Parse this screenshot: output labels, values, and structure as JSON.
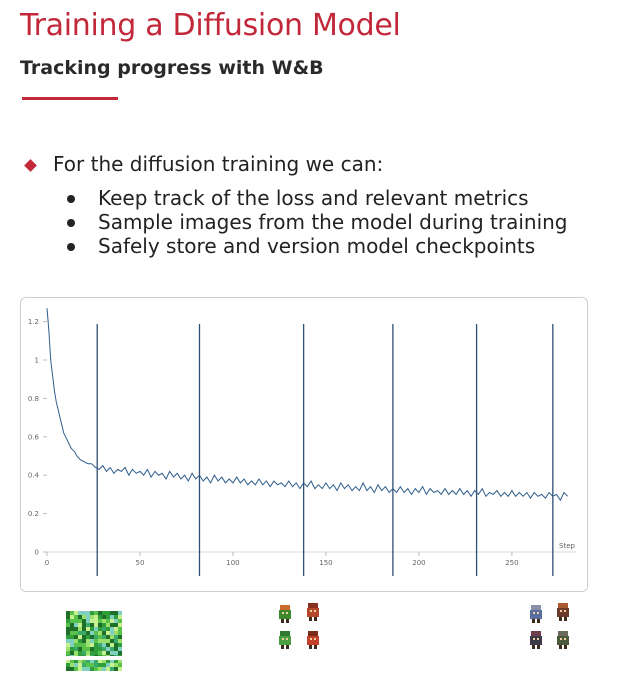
{
  "slide": {
    "title": "Training a Diffusion Model",
    "subtitle": "Tracking progress with W&B",
    "accent_color": "#c2283a",
    "main_bullet": "For the diffusion training we can:",
    "bullet_icon": "diamond-icon",
    "sub_bullets": [
      "Keep track of the loss and relevant metrics",
      "Sample images from the model during training",
      "Safely store and version model checkpoints"
    ]
  },
  "chart_data": {
    "type": "line",
    "title": "",
    "xlabel": "Step",
    "ylabel": "",
    "xlim": [
      0,
      285
    ],
    "ylim": [
      0,
      1.25
    ],
    "x_ticks": [
      0,
      50,
      100,
      150,
      200,
      250
    ],
    "y_ticks": [
      0,
      0.2,
      0.4,
      0.6,
      0.8,
      1,
      1.2
    ],
    "y_tick_labels": [
      "0",
      "0.2",
      "0.4",
      "0.6",
      "0.8",
      "1",
      "1.2"
    ],
    "grid": false,
    "line_color": "#2f5d8c",
    "vertical_markers": [
      27,
      82,
      138,
      186,
      231,
      272
    ],
    "series": [
      {
        "points": [
          [
            0,
            1.27
          ],
          [
            1,
            1.15
          ],
          [
            2,
            1.0
          ],
          [
            3,
            0.92
          ],
          [
            4,
            0.84
          ],
          [
            5,
            0.78
          ],
          [
            6,
            0.74
          ],
          [
            7,
            0.7
          ],
          [
            8,
            0.66
          ],
          [
            9,
            0.62
          ],
          [
            10,
            0.6
          ],
          [
            11,
            0.58
          ],
          [
            12,
            0.56
          ],
          [
            13,
            0.54
          ],
          [
            14,
            0.53
          ],
          [
            15,
            0.52
          ],
          [
            16,
            0.5
          ],
          [
            17,
            0.49
          ],
          [
            18,
            0.48
          ],
          [
            20,
            0.47
          ],
          [
            22,
            0.46
          ],
          [
            24,
            0.46
          ],
          [
            26,
            0.44
          ],
          [
            28,
            0.43
          ],
          [
            30,
            0.45
          ],
          [
            32,
            0.42
          ],
          [
            34,
            0.44
          ],
          [
            36,
            0.41
          ],
          [
            38,
            0.43
          ],
          [
            40,
            0.42
          ],
          [
            42,
            0.44
          ],
          [
            44,
            0.4
          ],
          [
            46,
            0.43
          ],
          [
            48,
            0.41
          ],
          [
            50,
            0.42
          ],
          [
            52,
            0.4
          ],
          [
            54,
            0.43
          ],
          [
            56,
            0.39
          ],
          [
            58,
            0.42
          ],
          [
            60,
            0.4
          ],
          [
            62,
            0.41
          ],
          [
            64,
            0.38
          ],
          [
            66,
            0.42
          ],
          [
            68,
            0.39
          ],
          [
            70,
            0.41
          ],
          [
            72,
            0.38
          ],
          [
            74,
            0.4
          ],
          [
            76,
            0.37
          ],
          [
            78,
            0.41
          ],
          [
            80,
            0.38
          ],
          [
            82,
            0.4
          ],
          [
            84,
            0.37
          ],
          [
            86,
            0.39
          ],
          [
            88,
            0.36
          ],
          [
            90,
            0.4
          ],
          [
            92,
            0.37
          ],
          [
            94,
            0.39
          ],
          [
            96,
            0.36
          ],
          [
            98,
            0.38
          ],
          [
            100,
            0.36
          ],
          [
            102,
            0.39
          ],
          [
            104,
            0.36
          ],
          [
            106,
            0.38
          ],
          [
            108,
            0.35
          ],
          [
            110,
            0.37
          ],
          [
            112,
            0.35
          ],
          [
            114,
            0.38
          ],
          [
            116,
            0.35
          ],
          [
            118,
            0.37
          ],
          [
            120,
            0.34
          ],
          [
            122,
            0.37
          ],
          [
            124,
            0.35
          ],
          [
            126,
            0.36
          ],
          [
            128,
            0.34
          ],
          [
            130,
            0.37
          ],
          [
            132,
            0.34
          ],
          [
            134,
            0.36
          ],
          [
            136,
            0.33
          ],
          [
            138,
            0.36
          ],
          [
            140,
            0.34
          ],
          [
            142,
            0.37
          ],
          [
            144,
            0.33
          ],
          [
            146,
            0.35
          ],
          [
            148,
            0.33
          ],
          [
            150,
            0.36
          ],
          [
            152,
            0.33
          ],
          [
            154,
            0.35
          ],
          [
            156,
            0.32
          ],
          [
            158,
            0.36
          ],
          [
            160,
            0.33
          ],
          [
            162,
            0.35
          ],
          [
            164,
            0.32
          ],
          [
            166,
            0.34
          ],
          [
            168,
            0.32
          ],
          [
            170,
            0.36
          ],
          [
            172,
            0.32
          ],
          [
            174,
            0.34
          ],
          [
            176,
            0.31
          ],
          [
            178,
            0.35
          ],
          [
            180,
            0.32
          ],
          [
            182,
            0.34
          ],
          [
            184,
            0.31
          ],
          [
            186,
            0.33
          ],
          [
            188,
            0.31
          ],
          [
            190,
            0.34
          ],
          [
            192,
            0.31
          ],
          [
            194,
            0.33
          ],
          [
            196,
            0.3
          ],
          [
            198,
            0.33
          ],
          [
            200,
            0.31
          ],
          [
            202,
            0.34
          ],
          [
            204,
            0.3
          ],
          [
            206,
            0.33
          ],
          [
            208,
            0.31
          ],
          [
            210,
            0.32
          ],
          [
            212,
            0.3
          ],
          [
            214,
            0.33
          ],
          [
            216,
            0.3
          ],
          [
            218,
            0.32
          ],
          [
            220,
            0.3
          ],
          [
            222,
            0.33
          ],
          [
            224,
            0.3
          ],
          [
            226,
            0.32
          ],
          [
            228,
            0.29
          ],
          [
            230,
            0.32
          ],
          [
            232,
            0.3
          ],
          [
            234,
            0.33
          ],
          [
            236,
            0.29
          ],
          [
            238,
            0.31
          ],
          [
            240,
            0.3
          ],
          [
            242,
            0.32
          ],
          [
            244,
            0.29
          ],
          [
            246,
            0.31
          ],
          [
            248,
            0.29
          ],
          [
            250,
            0.32
          ],
          [
            252,
            0.29
          ],
          [
            254,
            0.31
          ],
          [
            256,
            0.29
          ],
          [
            258,
            0.31
          ],
          [
            260,
            0.28
          ],
          [
            262,
            0.31
          ],
          [
            264,
            0.29
          ],
          [
            266,
            0.3
          ],
          [
            268,
            0.28
          ],
          [
            270,
            0.31
          ],
          [
            272,
            0.29
          ],
          [
            274,
            0.3
          ],
          [
            276,
            0.27
          ],
          [
            278,
            0.31
          ],
          [
            280,
            0.29
          ]
        ]
      }
    ]
  },
  "samples": [
    {
      "icon": "noisy-sample-image",
      "step": 27
    },
    {
      "icon": "sprite-sample-image",
      "step": 138
    },
    {
      "icon": "sprite-sample-image",
      "step": 272
    }
  ],
  "video": {
    "progress": 1.0
  }
}
